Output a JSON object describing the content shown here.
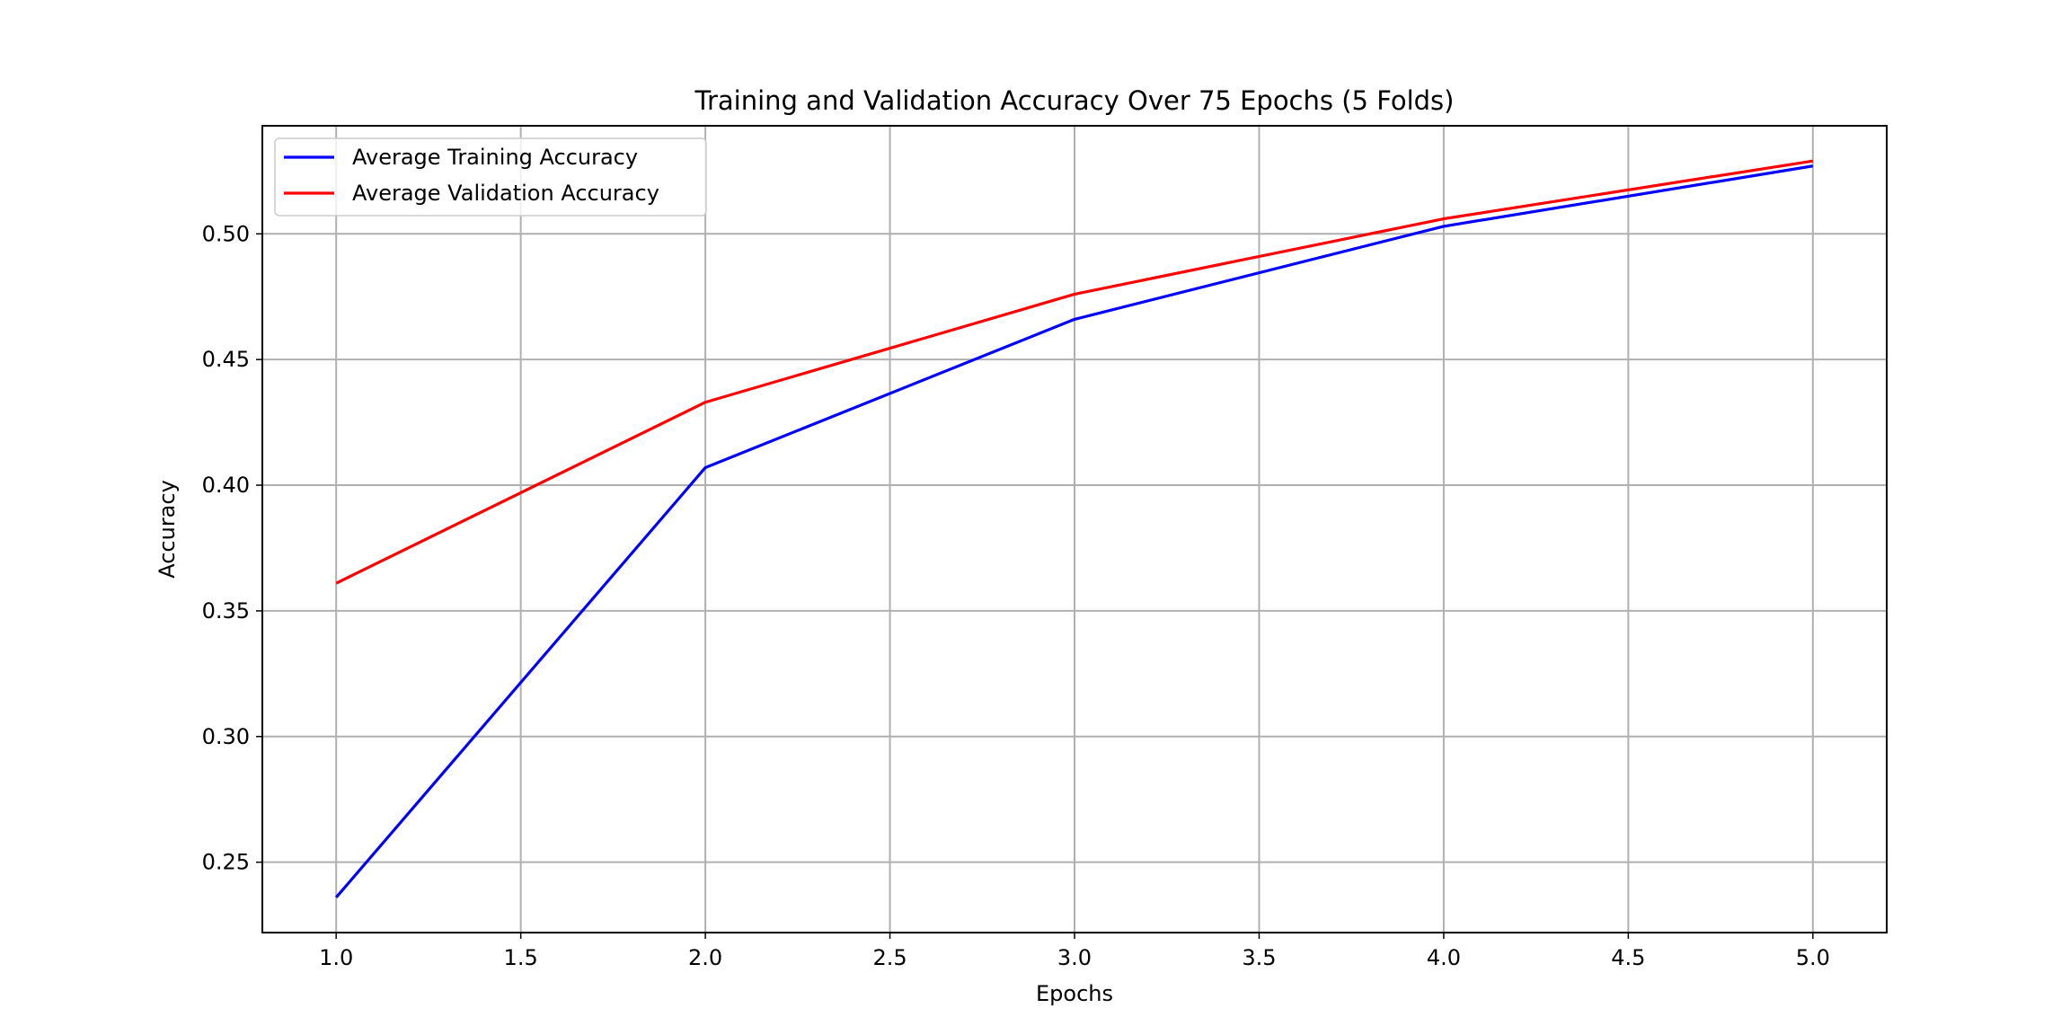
{
  "chart_data": {
    "type": "line",
    "title": "Training and Validation Accuracy Over 75 Epochs (5 Folds)",
    "xlabel": "Epochs",
    "ylabel": "Accuracy",
    "x": [
      1,
      2,
      3,
      4,
      5
    ],
    "xlim": [
      0.8,
      5.2
    ],
    "ylim": [
      0.222,
      0.543
    ],
    "xticks": [
      1.0,
      1.5,
      2.0,
      2.5,
      3.0,
      3.5,
      4.0,
      4.5,
      5.0
    ],
    "xtick_labels": [
      "1.0",
      "1.5",
      "2.0",
      "2.5",
      "3.0",
      "3.5",
      "4.0",
      "4.5",
      "5.0"
    ],
    "yticks": [
      0.25,
      0.3,
      0.35,
      0.4,
      0.45,
      0.5
    ],
    "ytick_labels": [
      "0.25",
      "0.30",
      "0.35",
      "0.40",
      "0.45",
      "0.50"
    ],
    "grid": true,
    "legend_position": "upper-left",
    "series": [
      {
        "name": "Average Training Accuracy",
        "color": "#0000ff",
        "values": [
          0.236,
          0.407,
          0.466,
          0.503,
          0.527
        ]
      },
      {
        "name": "Average Validation Accuracy",
        "color": "#ff0000",
        "values": [
          0.361,
          0.433,
          0.476,
          0.506,
          0.529
        ]
      }
    ]
  }
}
